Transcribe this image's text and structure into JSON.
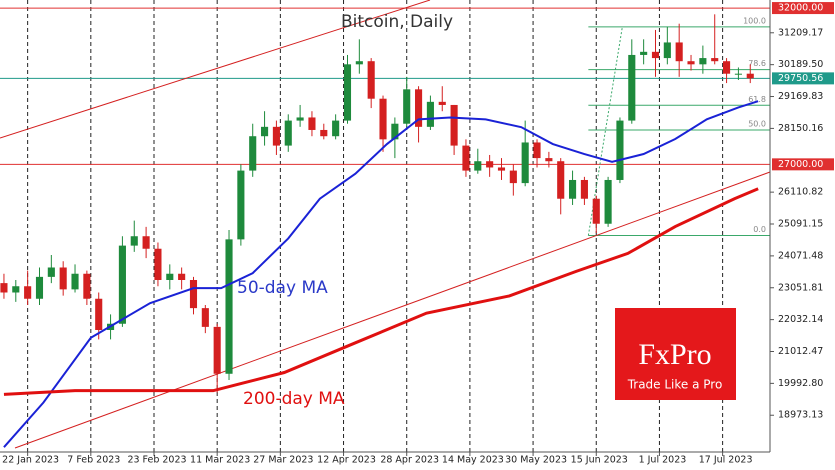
{
  "chart_data": {
    "type": "candlestick",
    "title": "Bitcoin, Daily",
    "x": [
      "2023-01-16",
      "2023-01-19",
      "2023-01-22",
      "2023-01-25",
      "2023-01-28",
      "2023-01-31",
      "2023-02-03",
      "2023-02-06",
      "2023-02-09",
      "2023-02-12",
      "2023-02-15",
      "2023-02-18",
      "2023-02-21",
      "2023-02-24",
      "2023-02-27",
      "2023-03-02",
      "2023-03-05",
      "2023-03-08",
      "2023-03-11",
      "2023-03-14",
      "2023-03-17",
      "2023-03-20",
      "2023-03-23",
      "2023-03-26",
      "2023-03-29",
      "2023-04-01",
      "2023-04-04",
      "2023-04-07",
      "2023-04-10",
      "2023-04-13",
      "2023-04-16",
      "2023-04-19",
      "2023-04-22",
      "2023-04-25",
      "2023-04-28",
      "2023-05-01",
      "2023-05-04",
      "2023-05-07",
      "2023-05-10",
      "2023-05-13",
      "2023-05-16",
      "2023-05-19",
      "2023-05-22",
      "2023-05-25",
      "2023-05-28",
      "2023-05-31",
      "2023-06-03",
      "2023-06-06",
      "2023-06-09",
      "2023-06-12",
      "2023-06-15",
      "2023-06-18",
      "2023-06-21",
      "2023-06-24",
      "2023-06-27",
      "2023-06-30",
      "2023-07-03",
      "2023-07-06",
      "2023-07-09",
      "2023-07-12",
      "2023-07-15",
      "2023-07-18",
      "2023-07-21",
      "2023-07-24"
    ],
    "ohlc": [
      [
        23200,
        23500,
        22700,
        22900
      ],
      [
        22900,
        23300,
        22600,
        23100
      ],
      [
        23100,
        23600,
        22500,
        22700
      ],
      [
        22700,
        23700,
        22500,
        23400
      ],
      [
        23400,
        24100,
        23200,
        23700
      ],
      [
        23700,
        23900,
        22800,
        23000
      ],
      [
        23000,
        23800,
        22900,
        23500
      ],
      [
        23500,
        23600,
        22500,
        22700
      ],
      [
        22700,
        22900,
        21400,
        21700
      ],
      [
        21700,
        22200,
        21400,
        21900
      ],
      [
        21900,
        24700,
        21800,
        24400
      ],
      [
        24400,
        25200,
        24200,
        24700
      ],
      [
        24700,
        25000,
        24000,
        24300
      ],
      [
        24300,
        24500,
        23100,
        23300
      ],
      [
        23300,
        23800,
        23000,
        23500
      ],
      [
        23500,
        23700,
        23000,
        23300
      ],
      [
        23300,
        23400,
        22200,
        22400
      ],
      [
        22400,
        22500,
        21600,
        21800
      ],
      [
        21800,
        21900,
        19700,
        20300
      ],
      [
        20300,
        24900,
        20100,
        24600
      ],
      [
        24600,
        27000,
        24400,
        26800
      ],
      [
        26800,
        28300,
        26600,
        27900
      ],
      [
        27900,
        28700,
        27600,
        28200
      ],
      [
        28200,
        28400,
        27300,
        27600
      ],
      [
        27600,
        28600,
        27400,
        28400
      ],
      [
        28400,
        28900,
        28200,
        28500
      ],
      [
        28500,
        28700,
        27900,
        28100
      ],
      [
        28100,
        28300,
        27800,
        27900
      ],
      [
        27900,
        28600,
        27800,
        28400
      ],
      [
        28400,
        30500,
        28300,
        30200
      ],
      [
        30200,
        31000,
        29900,
        30300
      ],
      [
        30300,
        30400,
        28800,
        29100
      ],
      [
        29100,
        29200,
        27400,
        27800
      ],
      [
        27800,
        28500,
        27200,
        28300
      ],
      [
        28300,
        29800,
        28200,
        29400
      ],
      [
        29400,
        29500,
        27700,
        28200
      ],
      [
        28200,
        29200,
        28100,
        29000
      ],
      [
        29000,
        29500,
        28700,
        28900
      ],
      [
        28900,
        28900,
        27300,
        27600
      ],
      [
        27600,
        27800,
        26600,
        26800
      ],
      [
        26800,
        27500,
        26700,
        27100
      ],
      [
        27100,
        27300,
        26600,
        26900
      ],
      [
        26900,
        27200,
        26500,
        26800
      ],
      [
        26800,
        27000,
        26000,
        26400
      ],
      [
        26400,
        28400,
        26300,
        27700
      ],
      [
        27700,
        27800,
        26900,
        27200
      ],
      [
        27200,
        27400,
        26900,
        27100
      ],
      [
        27100,
        27200,
        25400,
        25900
      ],
      [
        25900,
        26800,
        25700,
        26500
      ],
      [
        26500,
        26600,
        25700,
        25900
      ],
      [
        25900,
        26000,
        24800,
        25100
      ],
      [
        25100,
        26600,
        25000,
        26500
      ],
      [
        26500,
        28500,
        26400,
        28400
      ],
      [
        28400,
        31000,
        28300,
        30500
      ],
      [
        30500,
        31000,
        30200,
        30600
      ],
      [
        30600,
        31300,
        29800,
        30400
      ],
      [
        30400,
        31400,
        30200,
        30900
      ],
      [
        30900,
        31500,
        29800,
        30300
      ],
      [
        30300,
        30500,
        30000,
        30200
      ],
      [
        30200,
        30800,
        29900,
        30400
      ],
      [
        30400,
        31800,
        30200,
        30300
      ],
      [
        30300,
        30400,
        29600,
        29900
      ],
      [
        29900,
        30100,
        29700,
        29900
      ],
      [
        29900,
        30200,
        29600,
        29750
      ]
    ],
    "up_color": "#1e8a3c",
    "down_color": "#d42020",
    "lines": [
      {
        "name": "50-day MA",
        "color": "#1a22d6",
        "width": 2,
        "x": [
          "2023-01-16",
          "2023-01-26",
          "2023-02-07",
          "2023-02-22",
          "2023-03-05",
          "2023-03-12",
          "2023-03-20",
          "2023-03-29",
          "2023-04-06",
          "2023-04-15",
          "2023-04-23",
          "2023-05-01",
          "2023-05-09",
          "2023-05-18",
          "2023-05-27",
          "2023-06-04",
          "2023-06-12",
          "2023-06-19",
          "2023-06-27",
          "2023-07-05",
          "2023-07-13",
          "2023-07-21",
          "2023-07-26"
        ],
        "values": [
          17950,
          19380,
          21450,
          22560,
          23040,
          23040,
          23520,
          24630,
          25900,
          26700,
          27650,
          28440,
          28500,
          28440,
          28190,
          27650,
          27330,
          27080,
          27330,
          27810,
          28440,
          28820,
          29020
        ]
      },
      {
        "name": "200-day MA",
        "color": "#e01010",
        "width": 3,
        "x": [
          "2023-01-16",
          "2023-02-03",
          "2023-02-28",
          "2023-03-10",
          "2023-03-28",
          "2023-04-15",
          "2023-05-03",
          "2023-05-24",
          "2023-06-10",
          "2023-06-23",
          "2023-07-05",
          "2023-07-20",
          "2023-07-26"
        ],
        "values": [
          19640,
          19760,
          19760,
          19760,
          20340,
          21290,
          22240,
          22790,
          23580,
          24150,
          25010,
          25900,
          26220
        ]
      }
    ],
    "ylim": [
      17797,
      32258
    ],
    "yticks": [
      18973.13,
      {
        "value": 19992.8,
        "label": "19992.80"
      },
      21012.47,
      22032.14,
      23051.81,
      24071.48,
      25091.15,
      26110.82,
      28150.16,
      29169.83,
      {
        "value": 30189.5,
        "label": "30189.50"
      },
      31209.17
    ],
    "xlim": [
      "2023-01-15",
      "2023-07-29"
    ],
    "xticks": [
      {
        "value": "2023-01-22",
        "label": "22 Jan 2023"
      },
      {
        "value": "2023-02-07",
        "label": "7 Feb 2023"
      },
      {
        "value": "2023-02-23",
        "label": "23 Feb 2023"
      },
      {
        "value": "2023-03-11",
        "label": "11 Mar 2023"
      },
      {
        "value": "2023-03-27",
        "label": "27 Mar 2023"
      },
      {
        "value": "2023-04-12",
        "label": "12 Apr 2023"
      },
      {
        "value": "2023-04-28",
        "label": "28 Apr 2023"
      },
      {
        "value": "2023-05-14",
        "label": "14 May 2023"
      },
      {
        "value": "2023-05-30",
        "label": "30 May 2023"
      },
      {
        "value": "2023-06-15",
        "label": "15 Jun 2023"
      },
      {
        "value": "2023-07-01",
        "label": "1 Jul 2023"
      },
      {
        "value": "2023-07-17",
        "label": "17 Jul 2023"
      }
    ],
    "hlines": [
      {
        "value": 32000,
        "label": "32000.00",
        "color": "#e03030"
      },
      {
        "value": 29750.56,
        "label": "29750.56",
        "color": "#1f9a8a"
      },
      {
        "value": 27000,
        "label": "27000.00",
        "color": "#e03030"
      }
    ],
    "fib": {
      "color": "#3aa86a",
      "start": "2023-06-13",
      "levels": [
        {
          "value": 31400,
          "label": "100.0"
        },
        {
          "value": 30030,
          "label": "78.6"
        },
        {
          "value": 28890,
          "label": "61.8"
        },
        {
          "value": 28100,
          "label": "50.0"
        },
        {
          "value": 24724,
          "label": "0.0"
        }
      ]
    },
    "logo": {
      "brand": "FxPro",
      "slogan": "Trade Like a Pro"
    }
  }
}
